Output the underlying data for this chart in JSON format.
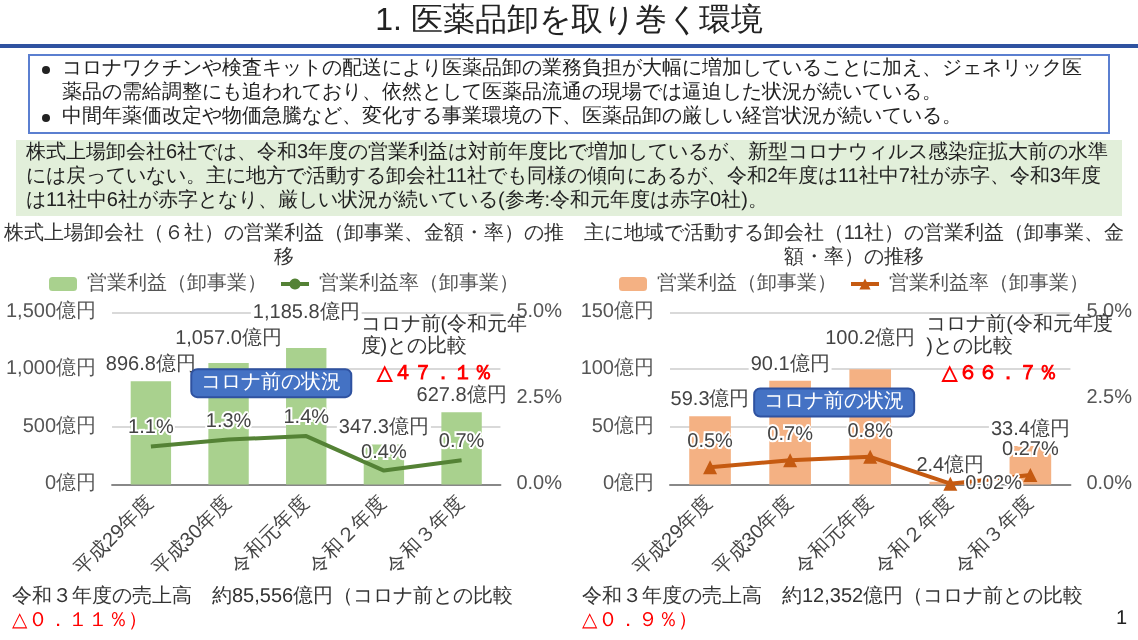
{
  "chart_data": [
    {
      "type": "other",
      "title": "1. 医薬品卸を取り巻く環境",
      "annotations": [
        "コロナワクチンや検査キットの配送により医薬品卸の業務負担が大幅に増加していることに加え、ジェネリック医薬品の需給調整にも追われており、依然として医薬品流通の現場では逼迫した状況が続いている。",
        "中間年薬価改定や物価急騰など、変化する事業環境の下、医薬品卸の厳しい経営状況が続いている。",
        "株式上場卸会社6社では、令和3年度の営業利益は対前年度比で増加しているが、新型コロナウィルス感染症拡大前の水準には戻っていない。主に地方で活動する卸会社11社でも同様の傾向にあるが、令和2年度は11社中7社が赤字、令和3年度は11社中6社が赤字となり、厳しい状況が続いている(参考:令和元年度は赤字0社)。",
        "1"
      ]
    },
    {
      "type": "bar",
      "title": "株式上場卸会社（６社）の営業利益（卸事業、金額・率）の推移",
      "categories": [
        "平成29年度",
        "平成30年度",
        "令和元年度",
        "令和２年度",
        "令和３年度"
      ],
      "series": [
        {
          "name": "営業利益（卸事業）",
          "type": "bar",
          "color": "#a9d18e",
          "values": [
            896.8,
            1057.0,
            1185.8,
            347.3,
            627.8
          ],
          "value_labels": [
            "896.8億円",
            "1,057.0億円",
            "1,185.8億円",
            "347.3億円",
            "627.8億円"
          ]
        },
        {
          "name": "営業利益率（卸事業）",
          "type": "line",
          "axis": "y2",
          "color": "#548235",
          "values": [
            1.1,
            1.3,
            1.4,
            0.4,
            0.7
          ],
          "value_labels": [
            "1.1%",
            "1.3%",
            "1.4%",
            "0.4%",
            "0.7%"
          ]
        }
      ],
      "ylim": [
        0,
        1500
      ],
      "yticks": [
        {
          "value": 0,
          "label": "0億円"
        },
        {
          "value": 500,
          "label": "500億円"
        },
        {
          "value": 1000,
          "label": "1,000億円"
        },
        {
          "value": 1500,
          "label": "1,500億円"
        }
      ],
      "y2lim": [
        0,
        5
      ],
      "y2ticks": [
        {
          "value": 0,
          "label": "0.0%"
        },
        {
          "value": 2.5,
          "label": "2.5%"
        },
        {
          "value": 5,
          "label": "5.0%"
        }
      ],
      "grid": "y",
      "legend": "top",
      "marker": "none",
      "annotations": [
        "コロナ前の状況",
        "コロナ前(令和元年度)との比較",
        "△４７．１％",
        "令和３年度の売上高　約85,556億円（コロナ前との比較",
        "△０．１１％）"
      ]
    },
    {
      "type": "bar",
      "title": "主に地域で活動する卸会社（11社）の営業利益（卸事業、金額・率）の推移",
      "categories": [
        "平成29年度",
        "平成30年度",
        "令和元年度",
        "令和２年度",
        "令和３年度"
      ],
      "series": [
        {
          "name": "営業利益（卸事業）",
          "type": "bar",
          "color": "#f4b183",
          "values": [
            59.3,
            90.1,
            100.2,
            2.4,
            33.4
          ],
          "value_labels": [
            "59.3億円",
            "90.1億円",
            "100.2億円",
            "2.4億円",
            "33.4億円"
          ]
        },
        {
          "name": "営業利益率（卸事業）",
          "type": "line",
          "axis": "y2",
          "color": "#c55a11",
          "values": [
            0.5,
            0.7,
            0.8,
            0.02,
            0.27
          ],
          "value_labels": [
            "0.5%",
            "0.7%",
            "0.8%",
            "0.02%",
            "0.27%"
          ]
        }
      ],
      "ylim": [
        0,
        150
      ],
      "yticks": [
        {
          "value": 0,
          "label": "0億円"
        },
        {
          "value": 50,
          "label": "50億円"
        },
        {
          "value": 100,
          "label": "100億円"
        },
        {
          "value": 150,
          "label": "150億円"
        }
      ],
      "y2lim": [
        0,
        5
      ],
      "y2ticks": [
        {
          "value": 0,
          "label": "0.0%"
        },
        {
          "value": 2.5,
          "label": "2.5%"
        },
        {
          "value": 5,
          "label": "5.0%"
        }
      ],
      "grid": "y",
      "legend": "top",
      "marker": "triangle",
      "annotations": [
        "コロナ前の状況",
        "コロナ前(令和元年度)との比較",
        "△６６．７％",
        "令和３年度の売上高　約12,352億円（コロナ前との比較",
        "△０．９％）"
      ]
    }
  ]
}
